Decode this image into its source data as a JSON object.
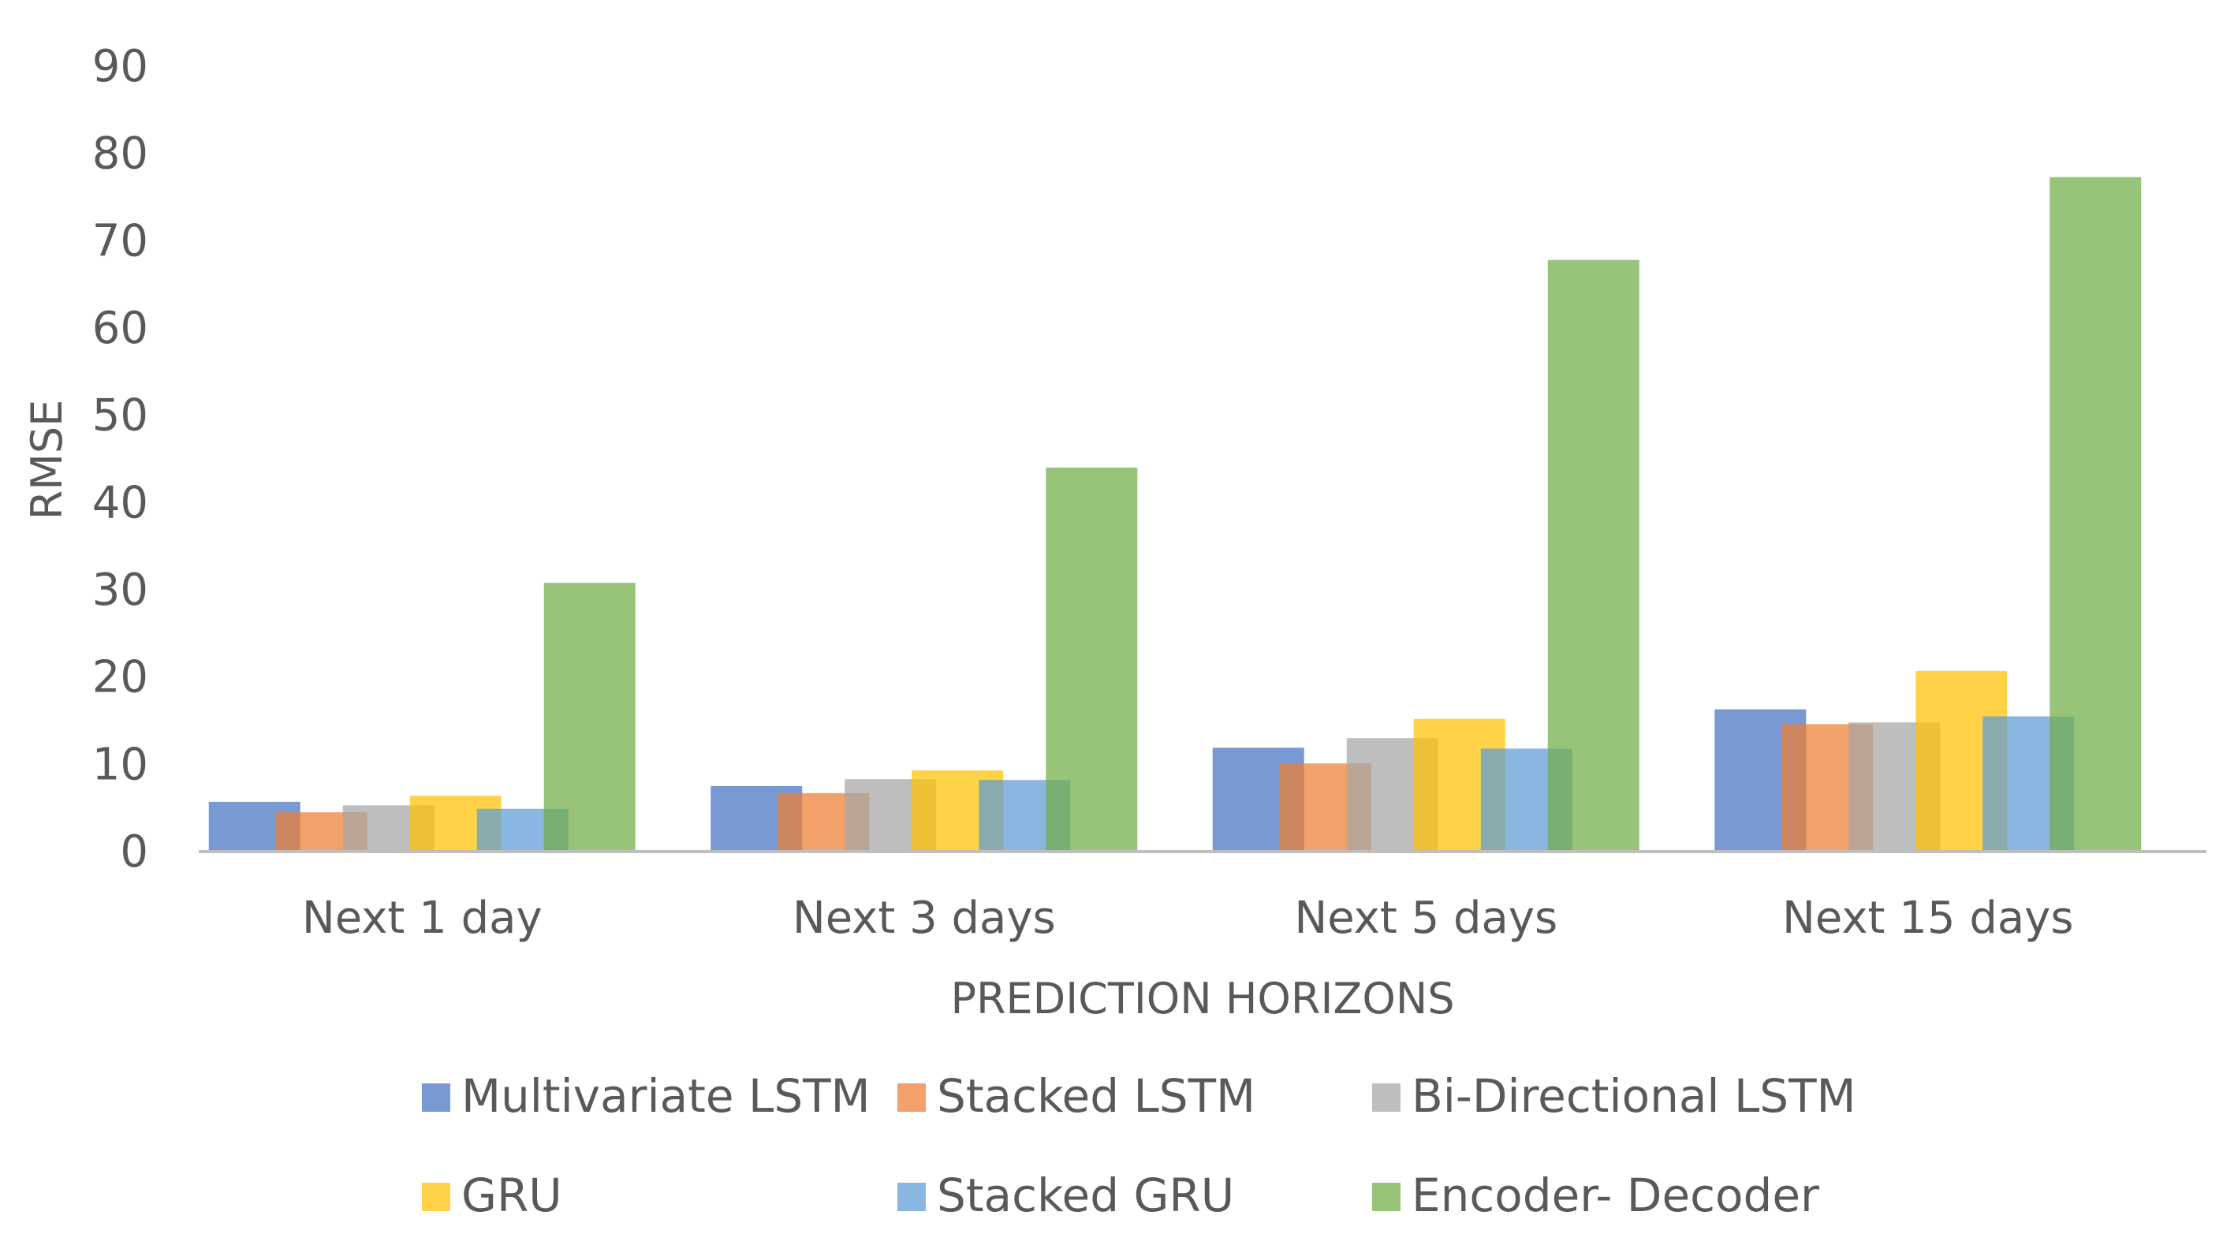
{
  "chart_data": {
    "type": "bar",
    "title": "",
    "xlabel": "PREDICTION HORIZONS",
    "ylabel": "RMSE",
    "ylim": [
      0,
      90
    ],
    "yticks": [
      0,
      10,
      20,
      30,
      40,
      50,
      60,
      70,
      80,
      90
    ],
    "grid": false,
    "legend_position": "bottom",
    "categories": [
      "Next 1 day",
      "Next 3 days",
      "Next 5 days",
      "Next 15 days"
    ],
    "series": [
      {
        "name": "Multivariate  LSTM",
        "color": "#4472C4",
        "values": [
          5.7,
          7.5,
          11.9,
          16.3
        ]
      },
      {
        "name": "Stacked LSTM",
        "color": "#ED7D31",
        "values": [
          4.5,
          6.7,
          10.1,
          14.6
        ]
      },
      {
        "name": "Bi-Directional LSTM",
        "color": "#A5A5A5",
        "values": [
          5.3,
          8.3,
          13.0,
          14.8
        ]
      },
      {
        "name": "GRU",
        "color": "#FFC000",
        "values": [
          6.4,
          9.3,
          15.2,
          20.7
        ]
      },
      {
        "name": "Stacked GRU",
        "color": "#5B9BD5",
        "values": [
          4.9,
          8.2,
          11.8,
          15.5
        ]
      },
      {
        "name": "Encoder- Decoder",
        "color": "#70AD47",
        "values": [
          30.8,
          44.0,
          67.8,
          77.3
        ]
      }
    ]
  }
}
